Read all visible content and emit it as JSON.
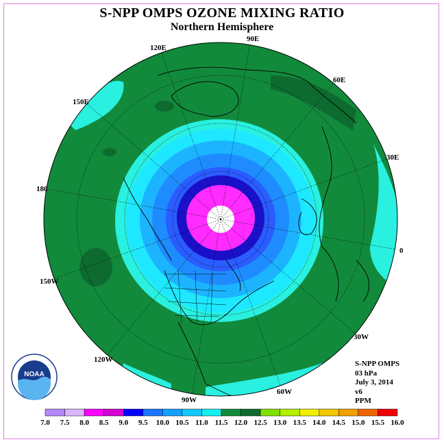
{
  "title": "S-NPP OMPS OZONE MIXING RATIO",
  "subtitle": "Northern Hemisphere",
  "info": {
    "instrument": "S-NPP OMPS",
    "level": "03 hPa",
    "date": "July 3, 2014",
    "version": "v6",
    "units": "PPM"
  },
  "longitude_labels": [
    {
      "text": "90E"
    },
    {
      "text": "60E"
    },
    {
      "text": "30E"
    },
    {
      "text": "0"
    },
    {
      "text": "30W"
    },
    {
      "text": "60W"
    },
    {
      "text": "90W"
    },
    {
      "text": "120W"
    },
    {
      "text": "150W"
    },
    {
      "text": "180"
    },
    {
      "text": "150E"
    },
    {
      "text": "120E"
    }
  ],
  "colorbar": {
    "ticks": [
      "7.0",
      "7.5",
      "8.0",
      "8.5",
      "9.0",
      "9.5",
      "10.0",
      "10.5",
      "11.0",
      "11.5",
      "12.0",
      "12.5",
      "13.0",
      "13.5",
      "14.0",
      "14.5",
      "15.0",
      "15.5",
      "16.0"
    ],
    "colors": [
      "#b388ff",
      "#dcb4ff",
      "#ff00ff",
      "#d400d4",
      "#0000ff",
      "#1a75ff",
      "#14a0ff",
      "#14c8ff",
      "#14f0f0",
      "#118a3b",
      "#0d6b2e",
      "#80e000",
      "#b4f000",
      "#f0f000",
      "#f0c800",
      "#f0a000",
      "#f06400",
      "#f00000",
      "#8b4513"
    ]
  },
  "colors": {
    "ring_magenta": "#ff2bff",
    "ring_navy": "#1a10c8",
    "ring_blue1": "#2a5cff",
    "ring_blue2": "#1e8cff",
    "ring_cyan1": "#1cb4ff",
    "ring_cyan2": "#1ee8ff",
    "ring_aqua": "#2af0e0",
    "green_main": "#128a3c",
    "green_dark": "#0d6b30"
  },
  "logo_text": "NOAA"
}
